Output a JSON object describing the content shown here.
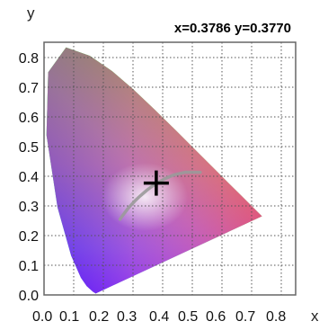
{
  "chart_data": {
    "type": "scatter",
    "title": "",
    "xlabel": "x",
    "ylabel": "y",
    "xlim": [
      0,
      0.8
    ],
    "ylim": [
      0,
      0.85
    ],
    "grid": true,
    "x_ticks": [
      "0.0",
      "0.1",
      "0.2",
      "0.3",
      "0.4",
      "0.5",
      "0.6",
      "0.7",
      "0.8"
    ],
    "y_ticks": [
      "0.0",
      "0.1",
      "0.2",
      "0.3",
      "0.4",
      "0.5",
      "0.6",
      "0.7",
      "0.8"
    ],
    "readout": "x=0.3786 y=0.3770",
    "cursor": {
      "x": 0.3786,
      "y": 0.377
    },
    "spectral_locus": [
      {
        "x": 0.1741,
        "y": 0.005
      },
      {
        "x": 0.1644,
        "y": 0.0109
      },
      {
        "x": 0.144,
        "y": 0.0297
      },
      {
        "x": 0.1241,
        "y": 0.0578
      },
      {
        "x": 0.0913,
        "y": 0.1327
      },
      {
        "x": 0.0454,
        "y": 0.295
      },
      {
        "x": 0.0082,
        "y": 0.5384
      },
      {
        "x": 0.0139,
        "y": 0.7502
      },
      {
        "x": 0.0743,
        "y": 0.8338
      },
      {
        "x": 0.1547,
        "y": 0.8059
      },
      {
        "x": 0.2296,
        "y": 0.7543
      },
      {
        "x": 0.3016,
        "y": 0.6923
      },
      {
        "x": 0.3731,
        "y": 0.6245
      },
      {
        "x": 0.4441,
        "y": 0.5547
      },
      {
        "x": 0.5125,
        "y": 0.4866
      },
      {
        "x": 0.5752,
        "y": 0.4242
      },
      {
        "x": 0.627,
        "y": 0.3725
      },
      {
        "x": 0.6658,
        "y": 0.334
      },
      {
        "x": 0.6915,
        "y": 0.3083
      },
      {
        "x": 0.7347,
        "y": 0.2653
      }
    ],
    "planckian_locus": [
      {
        "x": 0.5267,
        "y": 0.4133
      },
      {
        "x": 0.477,
        "y": 0.4137
      },
      {
        "x": 0.4369,
        "y": 0.4041
      },
      {
        "x": 0.4053,
        "y": 0.3907
      },
      {
        "x": 0.3805,
        "y": 0.3768
      },
      {
        "x": 0.3608,
        "y": 0.3636
      },
      {
        "x": 0.3451,
        "y": 0.3516
      },
      {
        "x": 0.3221,
        "y": 0.3318
      },
      {
        "x": 0.3064,
        "y": 0.3166
      },
      {
        "x": 0.2952,
        "y": 0.3048
      },
      {
        "x": 0.2806,
        "y": 0.2883
      },
      {
        "x": 0.2647,
        "y": 0.2673
      },
      {
        "x": 0.2565,
        "y": 0.2553
      }
    ]
  }
}
